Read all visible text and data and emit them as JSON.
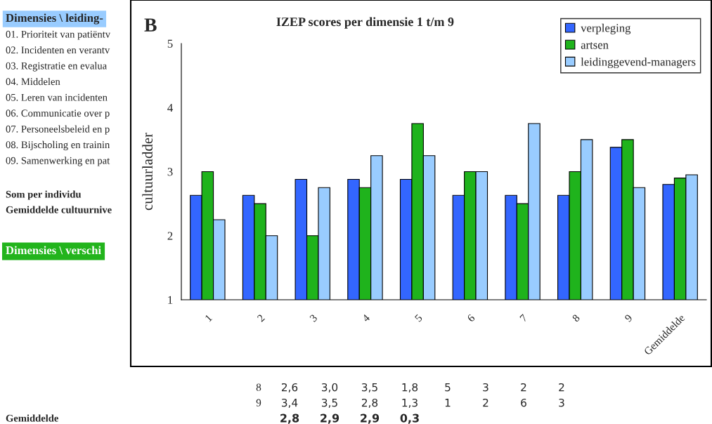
{
  "chart_data": {
    "type": "bar",
    "title": "IZEP scores per dimensie 1 t/m 9",
    "ylabel": "cultuurladder",
    "categories": [
      "1",
      "2",
      "3",
      "4",
      "5",
      "6",
      "7",
      "8",
      "9",
      "Gemiddelde"
    ],
    "series": [
      {
        "name": "verpleging",
        "color": "#3366ff",
        "values": [
          2.63,
          2.63,
          2.88,
          2.88,
          2.88,
          2.63,
          2.63,
          2.63,
          3.38,
          2.8
        ]
      },
      {
        "name": "artsen",
        "color": "#1fb31c",
        "values": [
          3.0,
          2.5,
          2.0,
          2.75,
          3.75,
          3.0,
          2.5,
          3.0,
          3.5,
          2.9
        ]
      },
      {
        "name": "leidinggevend-managers",
        "color": "#99ccff",
        "values": [
          2.25,
          2.0,
          2.75,
          3.25,
          3.25,
          3.0,
          3.75,
          3.5,
          2.75,
          2.95
        ]
      }
    ],
    "ylim": [
      1,
      5
    ],
    "yticks": [
      1,
      2,
      3,
      4,
      5
    ],
    "grid": false,
    "legend": "top right",
    "annotations": [
      "B",
      "Dimensies \\ leiding-",
      "01. Prioriteit van patiëntv",
      "02. Incidenten en verantv",
      "03. Registratie en evalua",
      "04. Middelen",
      "05. Leren van incidenten",
      "06. Communicatie over p",
      "07. Personeelsbeleid en p",
      "08. Bijscholing en trainin",
      "09. Samenwerking en pat",
      "Som per individu",
      "Gemiddelde cultuurnive",
      "Dimensies \\ verschi",
      "8 2,6 3,0 3,5 1,8 5 3 2 2",
      "9 3,4 3,5 2,8 1,3 1 2 6 3",
      "Gemiddelde",
      "2,8 2,9 2,9 0,3"
    ]
  }
}
